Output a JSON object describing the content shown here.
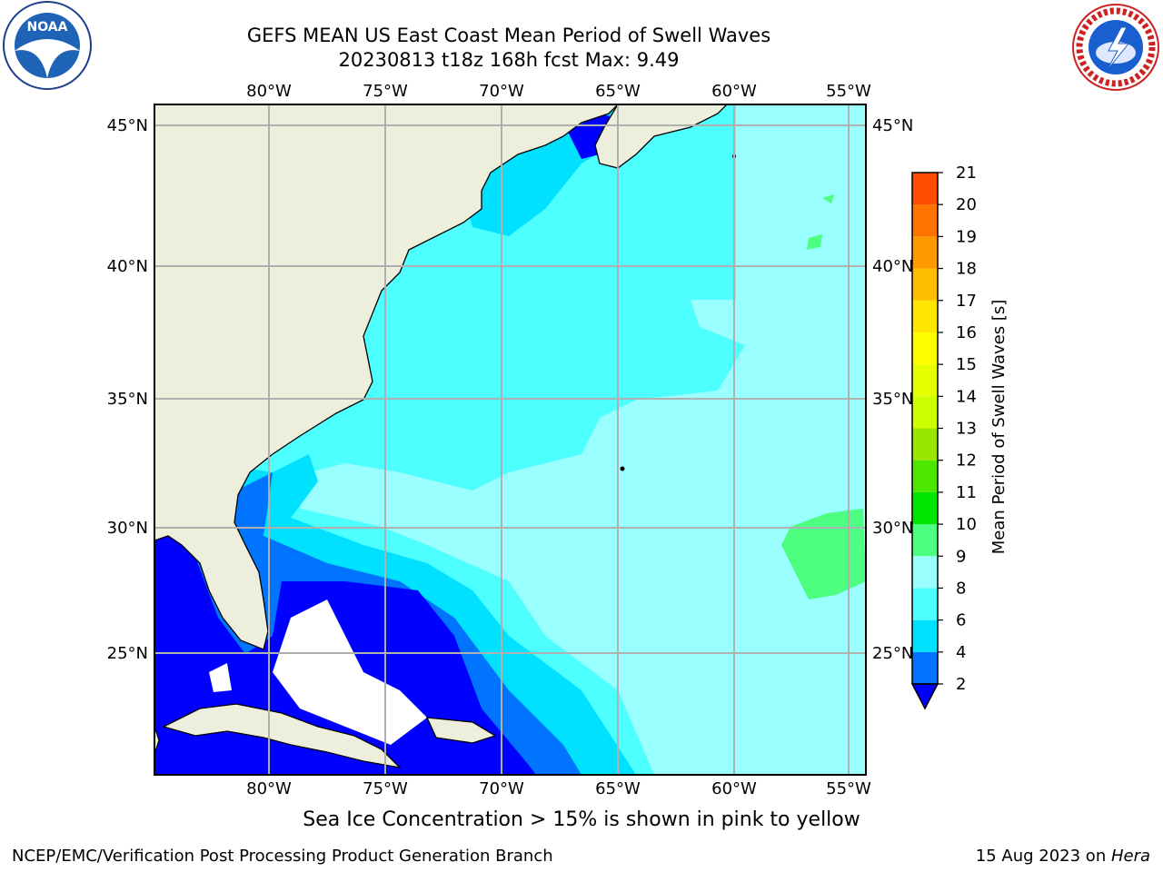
{
  "header": {
    "title_line1": "GEFS MEAN US East Coast Mean Period of Swell Waves",
    "title_line2": "20230813 t18z 168h fcst   Max: 9.49"
  },
  "logos": {
    "left": "noaa-logo",
    "left_text": "NOAA",
    "right": "nws-logo",
    "right_text": "NATIONAL WEATHER SERVICE"
  },
  "map": {
    "lon_labels": [
      "80°W",
      "75°W",
      "70°W",
      "65°W",
      "60°W",
      "55°W"
    ],
    "lat_labels": [
      "45°N",
      "40°N",
      "35°N",
      "30°N",
      "25°N"
    ],
    "lon_range": [
      -85,
      -53
    ],
    "lat_range": [
      20.5,
      46.5
    ],
    "grid": true,
    "land_color": "#eeeedd",
    "mask_color": "#ffffff"
  },
  "colorbar": {
    "label": "Mean Period of Swell Waves [s]",
    "ticks": [
      "2",
      "4",
      "6",
      "8",
      "9",
      "10",
      "11",
      "12",
      "13",
      "14",
      "15",
      "16",
      "17",
      "18",
      "19",
      "20",
      "21"
    ],
    "colors": [
      "#0073ff",
      "#00e1ff",
      "#4dffff",
      "#99ffff",
      "#4dff80",
      "#00e600",
      "#4de600",
      "#99e600",
      "#ccff00",
      "#e6ff00",
      "#ffff00",
      "#ffe600",
      "#ffbf00",
      "#ff9900",
      "#ff7300",
      "#ff4d00",
      "#ff0000"
    ],
    "under_color": "#0000ff"
  },
  "notes": {
    "sea_ice": "Sea Ice Concentration > 15% is shown in pink to yellow",
    "footer_left": "NCEP/EMC/Verification Post Processing Product Generation Branch",
    "footer_date": "15 Aug 2023 on ",
    "footer_host": "Hera"
  }
}
